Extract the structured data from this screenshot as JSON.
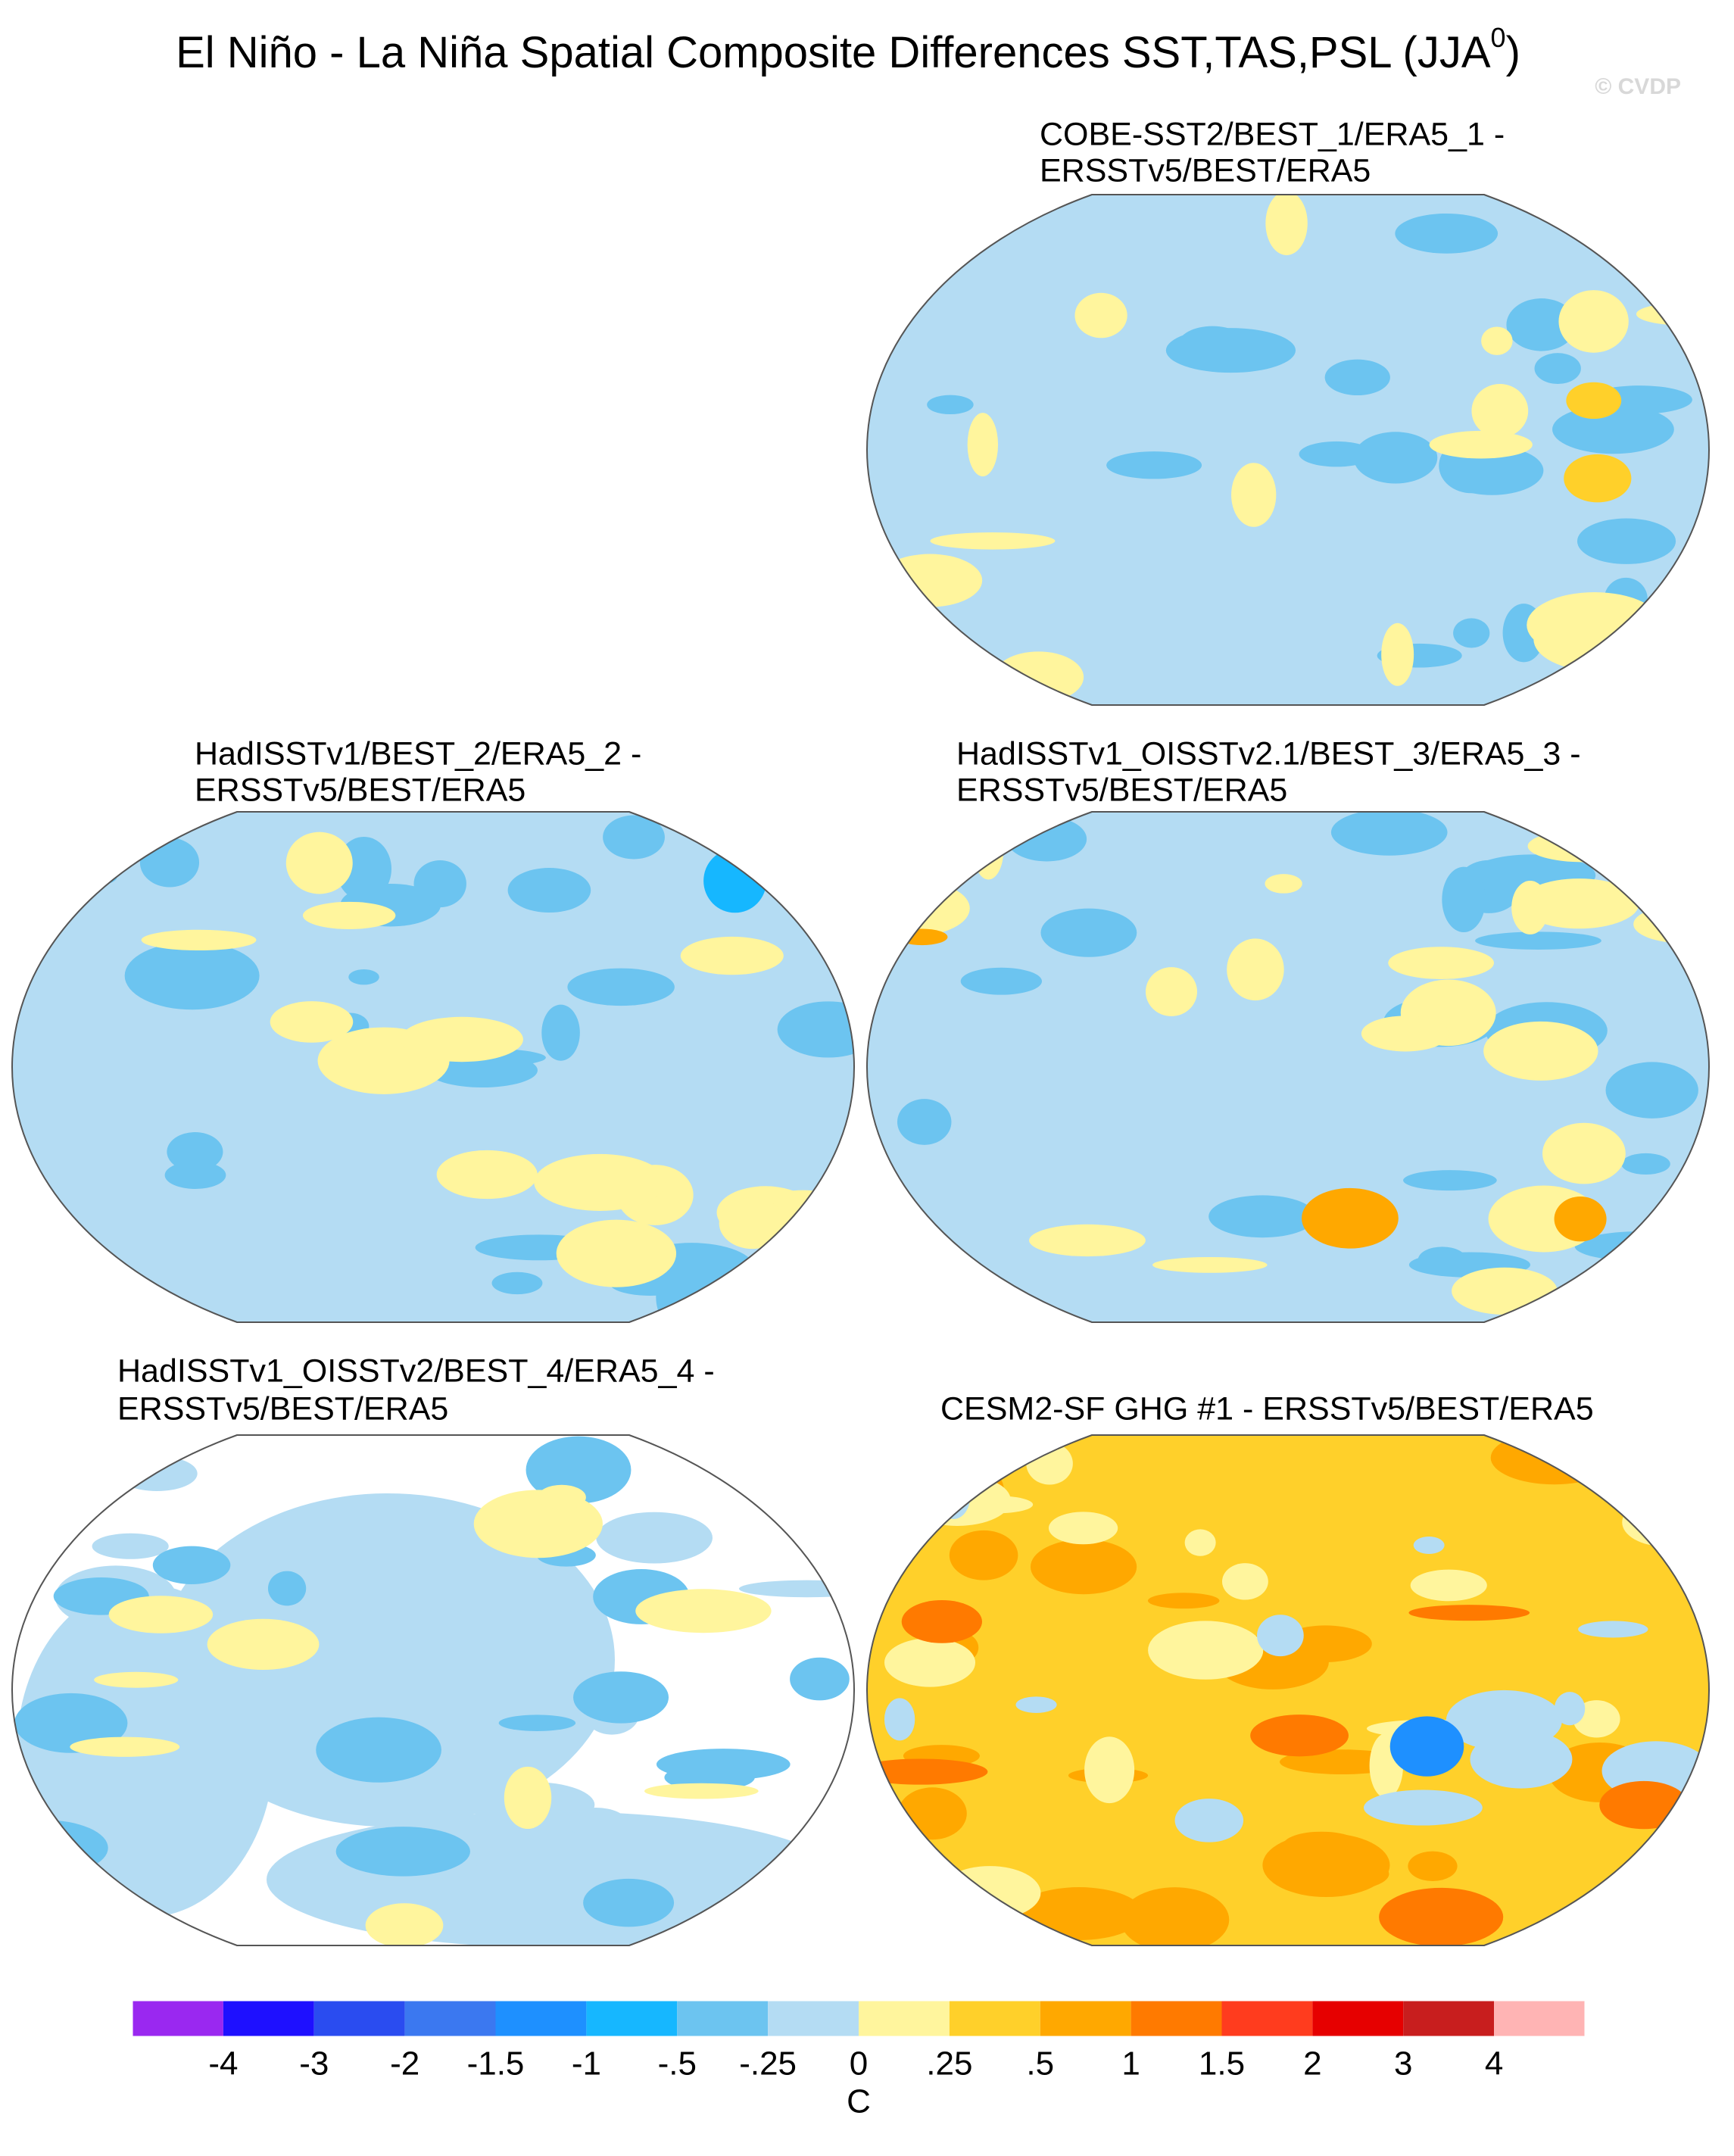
{
  "title": "El Niño - La Niña Spatial Composite Differences SST,TAS,PSL (JJA",
  "title_superscript": "0",
  "title_suffix": ")",
  "watermark": "© CVDP",
  "panels": [
    {
      "title_lines": [
        "COBE-SST2/BEST_1/ERA5_1 -",
        "ERSSTv5/BEST/ERA5"
      ]
    },
    {
      "title_lines": [
        "HadISSTv1/BEST_2/ERA5_2 -",
        "ERSSTv5/BEST/ERA5"
      ]
    },
    {
      "title_lines": [
        "HadISSTv1_OISSTv2.1/BEST_3/ERA5_3 -",
        "ERSSTv5/BEST/ERA5"
      ]
    },
    {
      "title_lines": [
        "HadISSTv1_OISSTv2/BEST_4/ERA5_4 -",
        "ERSSTv5/BEST/ERA5"
      ]
    },
    {
      "title_lines": [
        "CESM2-SF GHG #1 - ERSSTv5/BEST/ERA5"
      ]
    }
  ],
  "colorbar": {
    "colors": [
      "#9a28f0",
      "#1e10ff",
      "#2a4cf0",
      "#3b78f0",
      "#1e90ff",
      "#16b7ff",
      "#6cc4f0",
      "#b4dcf3",
      "#fff59d",
      "#ffd02a",
      "#ffa800",
      "#ff7a00",
      "#ff3c1e",
      "#e60000",
      "#c81e1e",
      "#ffb4b4"
    ],
    "ticks": [
      -4,
      -3,
      -2,
      {
        "value": -1.5,
        "label": "-1.5"
      },
      -1,
      {
        "value": -0.5,
        "label": "-.5"
      },
      {
        "value": -0.25,
        "label": "-.25"
      },
      0,
      {
        "value": 0.25,
        "label": ".25"
      },
      {
        "value": 0.5,
        "label": ".5"
      },
      1,
      1.5,
      2,
      3,
      4
    ],
    "units": "C"
  }
}
